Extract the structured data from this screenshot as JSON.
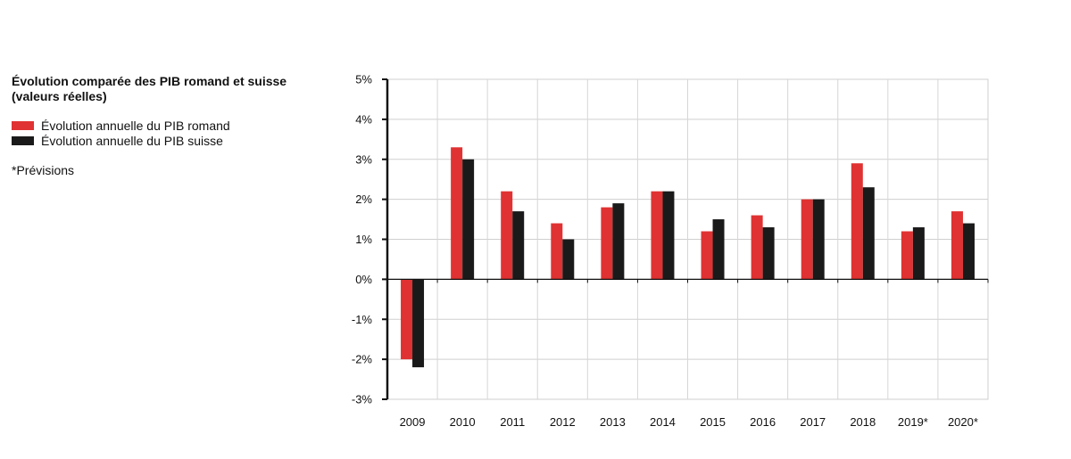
{
  "chart_data": {
    "type": "bar",
    "title": "Évolution comparée des PIB romand et suisse",
    "subtitle": "(valeurs réelles)",
    "note": "*Prévisions",
    "categories": [
      "2009",
      "2010",
      "2011",
      "2012",
      "2013",
      "2014",
      "2015",
      "2016",
      "2017",
      "2018",
      "2019*",
      "2020*"
    ],
    "series": [
      {
        "name": "Évolution annuelle du PIB romand",
        "color": "#e03232",
        "values": [
          -2.0,
          3.3,
          2.2,
          1.4,
          1.8,
          2.2,
          1.2,
          1.6,
          2.0,
          2.9,
          1.2,
          1.7
        ]
      },
      {
        "name": "Évolution annuelle du PIB suisse",
        "color": "#1a1a1a",
        "values": [
          -2.2,
          3.0,
          1.7,
          1.0,
          1.9,
          2.2,
          1.5,
          1.3,
          2.0,
          2.3,
          1.3,
          1.4
        ]
      }
    ],
    "ylim": [
      -3,
      5
    ],
    "yticks": [
      5,
      4,
      3,
      2,
      1,
      0,
      -1,
      -2,
      -3
    ],
    "ytick_labels": [
      "5%",
      "4%",
      "3%",
      "2%",
      "1%",
      "0%",
      "-1%",
      "-2%",
      "-3%"
    ],
    "grid": true,
    "legend_position": "left"
  }
}
